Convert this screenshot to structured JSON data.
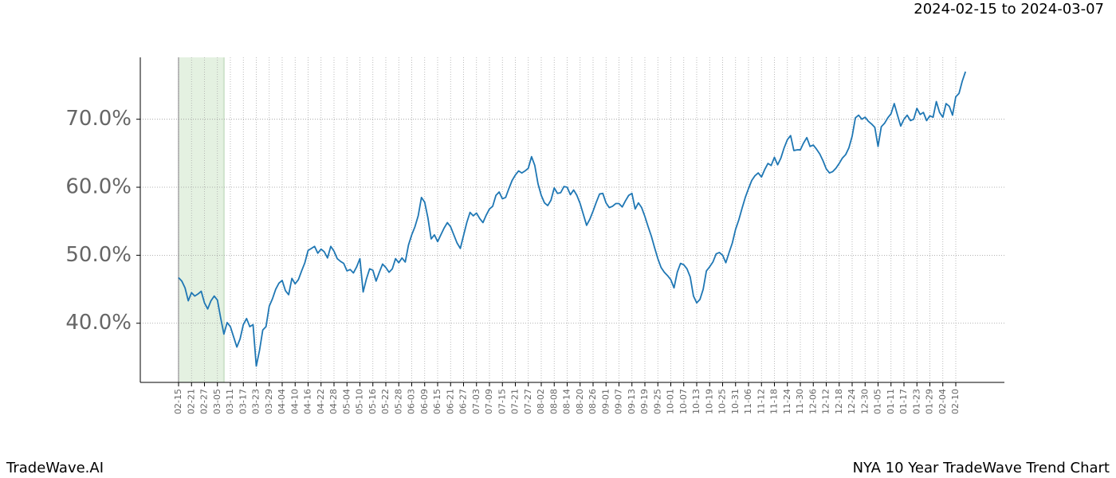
{
  "chart_data": {
    "type": "line",
    "date_range": "2024-02-15 to 2024-03-07",
    "footer_left": "TradeWave.AI",
    "footer_right": "NYA 10 Year TradeWave Trend Chart",
    "categories": [
      "02-15",
      null,
      null,
      null,
      "02-21",
      null,
      null,
      null,
      "02-27",
      null,
      null,
      null,
      "03-05",
      null,
      null,
      null,
      "03-11",
      null,
      null,
      null,
      "03-17",
      null,
      null,
      null,
      "03-23",
      null,
      null,
      null,
      "03-29",
      null,
      null,
      null,
      "04-04",
      null,
      null,
      null,
      "04-10",
      null,
      null,
      null,
      "04-16",
      null,
      null,
      null,
      "04-22",
      null,
      null,
      null,
      "04-28",
      null,
      null,
      null,
      "05-04",
      null,
      null,
      null,
      "05-10",
      null,
      null,
      null,
      "05-16",
      null,
      null,
      null,
      "05-22",
      null,
      null,
      null,
      "05-28",
      null,
      null,
      null,
      "06-03",
      null,
      null,
      null,
      "06-09",
      null,
      null,
      null,
      "06-15",
      null,
      null,
      null,
      "06-21",
      null,
      null,
      null,
      "06-27",
      null,
      null,
      null,
      "07-03",
      null,
      null,
      null,
      "07-09",
      null,
      null,
      null,
      "07-15",
      null,
      null,
      null,
      "07-21",
      null,
      null,
      null,
      "07-27",
      null,
      null,
      null,
      "08-02",
      null,
      null,
      null,
      "08-08",
      null,
      null,
      null,
      "08-14",
      null,
      null,
      null,
      "08-20",
      null,
      null,
      null,
      "08-26",
      null,
      null,
      null,
      "09-01",
      null,
      null,
      null,
      "09-07",
      null,
      null,
      null,
      "09-13",
      null,
      null,
      null,
      "09-19",
      null,
      null,
      null,
      "09-25",
      null,
      null,
      null,
      "10-01",
      null,
      null,
      null,
      "10-07",
      null,
      null,
      null,
      "10-13",
      null,
      null,
      null,
      "10-19",
      null,
      null,
      null,
      "10-25",
      null,
      null,
      null,
      "10-31",
      null,
      null,
      null,
      "11-06",
      null,
      null,
      null,
      "11-12",
      null,
      null,
      null,
      "11-18",
      null,
      null,
      null,
      "11-24",
      null,
      null,
      null,
      "11-30",
      null,
      null,
      null,
      "12-06",
      null,
      null,
      null,
      "12-12",
      null,
      null,
      null,
      "12-18",
      null,
      null,
      null,
      "12-24",
      null,
      null,
      null,
      "12-30",
      null,
      null,
      null,
      "01-05",
      null,
      null,
      null,
      "01-11",
      null,
      null,
      null,
      "01-17",
      null,
      null,
      null,
      "01-23",
      null,
      null,
      null,
      "01-29",
      null,
      null,
      null,
      "02-04",
      null,
      null,
      null,
      "02-10",
      null,
      null,
      null
    ],
    "series": [
      {
        "color": "#1f77b4",
        "values": [
          46.7,
          46.2,
          45.2,
          43.3,
          44.5,
          44.0,
          44.3,
          44.7,
          43.0,
          42.1,
          43.3,
          44.0,
          43.4,
          40.8,
          38.4,
          40.1,
          39.5,
          38.0,
          36.5,
          37.7,
          39.8,
          40.7,
          39.5,
          39.8,
          33.7,
          36.0,
          39.0,
          39.5,
          42.5,
          43.6,
          45.0,
          45.9,
          46.3,
          44.8,
          44.2,
          46.6,
          45.8,
          46.4,
          47.7,
          48.9,
          50.7,
          51.0,
          51.3,
          50.3,
          50.9,
          50.5,
          49.6,
          51.3,
          50.6,
          49.5,
          49.1,
          48.8,
          47.7,
          47.9,
          47.4,
          48.3,
          49.5,
          44.6,
          46.5,
          48.0,
          47.8,
          46.2,
          47.5,
          48.7,
          48.2,
          47.5,
          48.0,
          49.5,
          48.9,
          49.6,
          49.0,
          51.5,
          53.0,
          54.2,
          55.8,
          58.5,
          57.8,
          55.5,
          52.4,
          53.0,
          52.0,
          53.0,
          54.0,
          54.8,
          54.2,
          53.0,
          51.8,
          51.0,
          52.9,
          54.8,
          56.3,
          55.8,
          56.2,
          55.4,
          54.8,
          55.9,
          56.8,
          57.2,
          58.8,
          59.3,
          58.3,
          58.5,
          59.8,
          61.0,
          61.8,
          62.4,
          62.1,
          62.4,
          62.8,
          64.5,
          63.2,
          60.5,
          58.8,
          57.7,
          57.3,
          58.1,
          59.9,
          59.1,
          59.2,
          60.1,
          60.0,
          58.9,
          59.6,
          58.8,
          57.6,
          56.0,
          54.4,
          55.3,
          56.5,
          57.8,
          59.0,
          59.1,
          57.7,
          57.0,
          57.2,
          57.6,
          57.6,
          57.1,
          58.0,
          58.8,
          59.1,
          56.8,
          57.7,
          57.0,
          55.7,
          54.2,
          52.8,
          51.1,
          49.5,
          48.2,
          47.5,
          47.0,
          46.4,
          45.2,
          47.5,
          48.8,
          48.6,
          48.0,
          46.8,
          44.0,
          43.0,
          43.5,
          45.0,
          47.7,
          48.3,
          49.0,
          50.2,
          50.4,
          50.0,
          48.9,
          50.4,
          51.8,
          53.8,
          55.2,
          56.9,
          58.5,
          59.8,
          61.0,
          61.7,
          62.1,
          61.5,
          62.6,
          63.5,
          63.2,
          64.4,
          63.3,
          64.3,
          65.8,
          67.0,
          67.6,
          65.4,
          65.5,
          65.5,
          66.5,
          67.3,
          66.0,
          66.2,
          65.6,
          64.9,
          63.9,
          62.7,
          62.1,
          62.3,
          62.8,
          63.5,
          64.3,
          64.8,
          65.8,
          67.5,
          70.2,
          70.6,
          70.0,
          70.3,
          69.7,
          69.3,
          68.8,
          66.0,
          68.9,
          69.4,
          70.2,
          70.8,
          72.3,
          70.6,
          69.0,
          70.0,
          70.6,
          69.8,
          70.0,
          71.6,
          70.7,
          71.0,
          69.8,
          70.5,
          70.3,
          72.6,
          71.0,
          70.3,
          72.3,
          71.9,
          70.6,
          73.3,
          73.8,
          75.6,
          77.0
        ]
      }
    ],
    "ylim": [
      31.3,
      79.1
    ],
    "yticks": [
      {
        "value": 40,
        "label": "40.0%"
      },
      {
        "value": 50,
        "label": "50.0%"
      },
      {
        "value": 60,
        "label": "60.0%"
      },
      {
        "value": 70,
        "label": "70.0%"
      }
    ],
    "grid": true,
    "highlight_range": [
      0,
      14
    ],
    "highlight_color": "#e4f1e1"
  }
}
